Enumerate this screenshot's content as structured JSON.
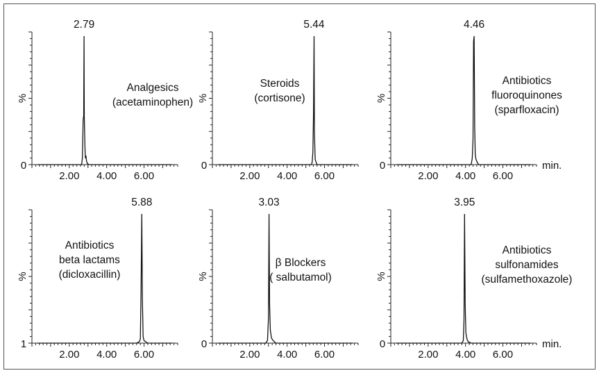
{
  "chart_data": [
    {
      "type": "line",
      "peak_label": "2.79",
      "annotation": [
        "Analgesics",
        "(acetaminophen)"
      ],
      "ylabel": "%",
      "y_origin_label": "0",
      "x_unit": "",
      "xlim": [
        0,
        7.8
      ],
      "x_ticks": [
        "2.00",
        "4.00",
        "6.00"
      ],
      "peak_rt": 2.79,
      "series": [
        {
          "x": [
            0.3,
            2.66,
            2.7,
            2.74,
            2.77,
            2.79,
            2.8,
            2.84,
            2.86,
            2.89,
            2.92,
            2.96,
            3.05,
            7.5
          ],
          "y": [
            0,
            0,
            5,
            35,
            38,
            100,
            38,
            12,
            5,
            7,
            3,
            1,
            0,
            0
          ]
        }
      ]
    },
    {
      "type": "line",
      "peak_label": "5.44",
      "annotation": [
        "Steroids",
        "(cortisone)"
      ],
      "ylabel": "%",
      "y_origin_label": "0",
      "x_unit": "",
      "xlim": [
        0,
        7.8
      ],
      "x_ticks": [
        "2.00",
        "4.00",
        "6.00"
      ],
      "peak_rt": 5.44,
      "series": [
        {
          "x": [
            0.3,
            5.3,
            5.34,
            5.38,
            5.41,
            5.44,
            5.46,
            5.5,
            5.55,
            5.6,
            7.5
          ],
          "y": [
            0,
            0,
            2,
            10,
            40,
            100,
            25,
            4,
            2,
            0,
            0
          ]
        }
      ]
    },
    {
      "type": "line",
      "peak_label": "4.46",
      "annotation": [
        "Antibiotics",
        "fluoroquinones",
        "(sparfloxacin)"
      ],
      "ylabel": "%",
      "y_origin_label": "0",
      "x_unit": "min.",
      "xlim": [
        0,
        7.8
      ],
      "x_ticks": [
        "2.00",
        "4.00",
        "6.00"
      ],
      "peak_rt": 4.46,
      "series": [
        {
          "x": [
            0.3,
            4.3,
            4.36,
            4.4,
            4.43,
            4.46,
            4.49,
            4.52,
            4.56,
            4.62,
            4.7,
            7.5
          ],
          "y": [
            0,
            0,
            5,
            20,
            96,
            100,
            30,
            8,
            4,
            2,
            0,
            0
          ]
        }
      ]
    },
    {
      "type": "line",
      "peak_label": "5.88",
      "annotation": [
        "Antibiotics",
        "beta lactams",
        "(dicloxacillin)"
      ],
      "ylabel": "%",
      "y_origin_label": "1",
      "x_unit": "",
      "xlim": [
        0,
        7.8
      ],
      "x_ticks": [
        "2.00",
        "4.00",
        "6.00"
      ],
      "peak_rt": 5.88,
      "series": [
        {
          "x": [
            0.3,
            5.6,
            5.74,
            5.8,
            5.84,
            5.88,
            5.91,
            5.95,
            6.0,
            6.1,
            6.2,
            7.5
          ],
          "y": [
            0,
            0,
            1,
            3,
            40,
            100,
            35,
            5,
            2,
            1,
            0,
            0
          ]
        }
      ]
    },
    {
      "type": "line",
      "peak_label": "3.03",
      "annotation": [
        "β Blockers",
        "( salbutamol)"
      ],
      "ylabel": "%",
      "y_origin_label": "0",
      "x_unit": "",
      "xlim": [
        0,
        7.8
      ],
      "x_ticks": [
        "2.00",
        "4.00",
        "6.00"
      ],
      "peak_rt": 3.03,
      "series": [
        {
          "x": [
            0.3,
            2.85,
            2.95,
            3.0,
            3.03,
            3.06,
            3.1,
            3.16,
            3.25,
            3.4,
            7.5
          ],
          "y": [
            0,
            0,
            2,
            20,
            100,
            30,
            10,
            4,
            2,
            0,
            0
          ]
        }
      ]
    },
    {
      "type": "line",
      "peak_label": "3.95",
      "annotation": [
        "Antibiotics",
        "sulfonamides",
        "(sulfamethoxazole)"
      ],
      "ylabel": "%",
      "y_origin_label": "0",
      "x_unit": "min.",
      "xlim": [
        0,
        7.8
      ],
      "x_ticks": [
        "2.00",
        "4.00",
        "6.00"
      ],
      "peak_rt": 3.95,
      "series": [
        {
          "x": [
            0.3,
            3.8,
            3.88,
            3.92,
            3.95,
            3.98,
            4.02,
            4.08,
            4.15,
            4.3,
            7.5
          ],
          "y": [
            0,
            0,
            2,
            18,
            100,
            30,
            8,
            3,
            1,
            0,
            0
          ]
        }
      ]
    }
  ]
}
